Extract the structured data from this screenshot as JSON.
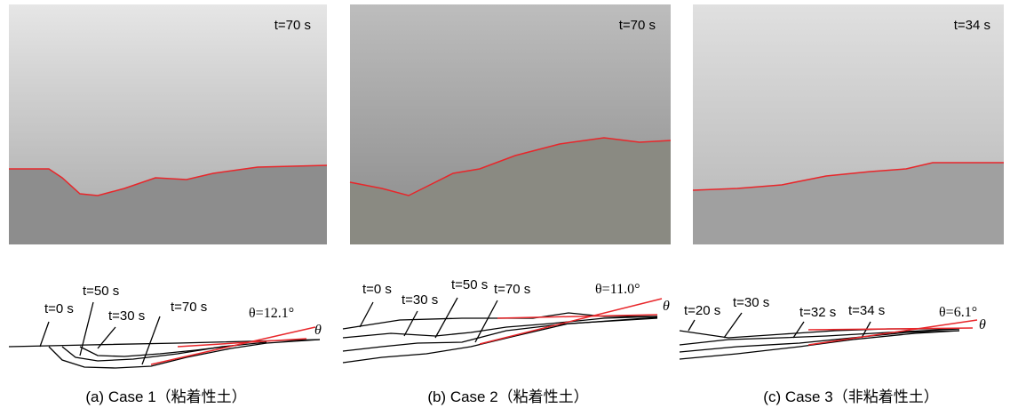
{
  "panels": [
    {
      "photo_time": "t=70 s",
      "profile_labels": [
        "t=0 s",
        "t=50 s",
        "t=30 s",
        "t=70 s"
      ],
      "angle_label": "θ=12.1°",
      "angle_symbol": "θ",
      "caption": "(a) Case 1（粘着性土）"
    },
    {
      "photo_time": "t=70 s",
      "profile_labels": [
        "t=0 s",
        "t=30 s",
        "t=50 s",
        "t=70 s"
      ],
      "angle_label": "θ=11.0°",
      "angle_symbol": "θ",
      "caption": "(b) Case 2（粘着性土）"
    },
    {
      "photo_time": "t=34 s",
      "profile_labels": [
        "t=20 s",
        "t=30 s",
        "t=32 s",
        "t=34 s"
      ],
      "angle_label": "θ=6.1°",
      "angle_symbol": "θ",
      "caption": "(c) Case 3（非粘着性土）"
    }
  ]
}
